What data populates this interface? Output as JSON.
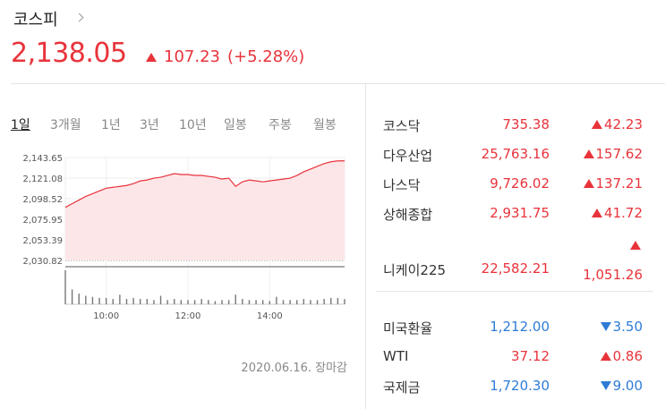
{
  "header": {
    "title": "코스피",
    "price": "2,138.05",
    "change": "107.23",
    "change_pct": "(+5.28%)",
    "direction": "up"
  },
  "tabs": {
    "items": [
      "1일",
      "3개월",
      "1년",
      "3년",
      "10년",
      "일봉",
      "주봉",
      "월봉"
    ],
    "selected": 0
  },
  "chart_data": {
    "type": "line",
    "x": [
      "09:00",
      "09:10",
      "09:20",
      "09:30",
      "09:40",
      "09:50",
      "10:00",
      "10:10",
      "10:20",
      "10:30",
      "10:40",
      "10:50",
      "11:00",
      "11:10",
      "11:20",
      "11:30",
      "11:40",
      "11:50",
      "12:00",
      "12:10",
      "12:20",
      "12:30",
      "12:40",
      "12:50",
      "13:00",
      "13:10",
      "13:20",
      "13:30",
      "13:40",
      "13:50",
      "14:00",
      "14:10",
      "14:20",
      "14:30",
      "14:40",
      "14:50",
      "15:00",
      "15:10",
      "15:20",
      "15:30",
      "15:40",
      "15:50"
    ],
    "series": [
      {
        "color": "#e8333b",
        "values": [
          2089,
          2093,
          2097,
          2101,
          2104,
          2107,
          2110,
          2111,
          2112,
          2113,
          2115,
          2118,
          2119,
          2121,
          2122,
          2124,
          2126,
          2125,
          2125,
          2124,
          2124,
          2123,
          2122,
          2120,
          2121,
          2112,
          2117,
          2119,
          2118,
          2117,
          2118,
          2119,
          2120,
          2121,
          2124,
          2128,
          2131,
          2134,
          2137,
          2139,
          2140,
          2140
        ],
        "volume": [
          32,
          14,
          10,
          8,
          7,
          6,
          6,
          5,
          9,
          5,
          6,
          5,
          5,
          4,
          8,
          4,
          5,
          4,
          4,
          4,
          5,
          4,
          3,
          4,
          4,
          9,
          5,
          4,
          4,
          4,
          3,
          7,
          4,
          4,
          4,
          5,
          4,
          4,
          5,
          6,
          6,
          5
        ]
      }
    ],
    "xlim": [
      "09:00",
      "15:50"
    ],
    "xticks": [
      "10:00",
      "12:00",
      "14:00"
    ],
    "ylim": [
      2030.82,
      2143.65
    ],
    "yticks": [
      {
        "value": 2030.82,
        "label": "2,030.82"
      },
      {
        "value": 2053.39,
        "label": "2,053.39"
      },
      {
        "value": 2075.95,
        "label": "2,075.95"
      },
      {
        "value": 2098.52,
        "label": "2,098.52"
      },
      {
        "value": 2121.08,
        "label": "2,121.08"
      },
      {
        "value": 2143.65,
        "label": "2,143.65"
      }
    ],
    "grid": true
  },
  "footnote": "2020.06.16. 장마감",
  "indices": [
    {
      "name": "코스닥",
      "value": "735.38",
      "change": "42.23",
      "direction": "up"
    },
    {
      "name": "다우산업",
      "value": "25,763.16",
      "change": "157.62",
      "direction": "up"
    },
    {
      "name": "나스닥",
      "value": "9,726.02",
      "change": "137.21",
      "direction": "up"
    },
    {
      "name": "상해종합",
      "value": "2,931.75",
      "change": "41.72",
      "direction": "up"
    },
    {
      "name": "니케이225",
      "value": "22,582.21",
      "change": "1,051.26",
      "direction": "up"
    }
  ],
  "fx": [
    {
      "name": "미국환율",
      "value": "1,212.00",
      "change": "3.50",
      "direction": "down"
    },
    {
      "name": "WTI",
      "value": "37.12",
      "change": "0.86",
      "direction": "up"
    },
    {
      "name": "국제금",
      "value": "1,720.30",
      "change": "9.00",
      "direction": "down"
    }
  ]
}
